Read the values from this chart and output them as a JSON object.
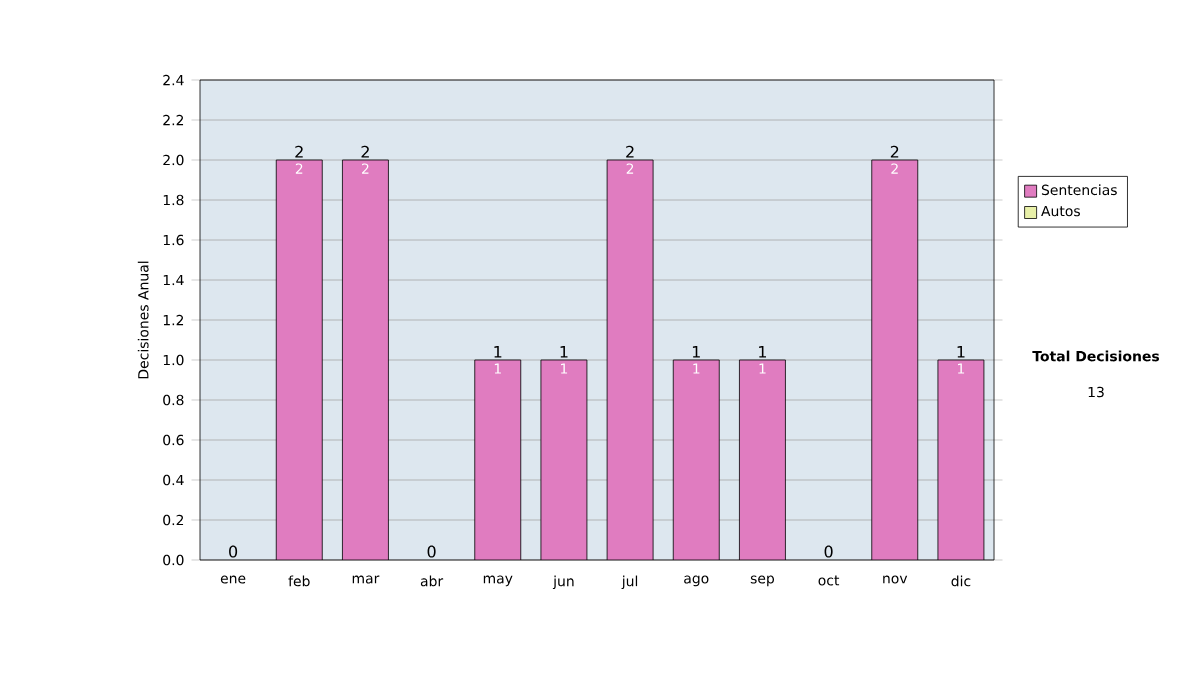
{
  "chart_data": {
    "type": "bar",
    "stacked": true,
    "ylabel": "Decisiones Anual",
    "categories": [
      "ene",
      "feb",
      "mar",
      "abr",
      "may",
      "jun",
      "jul",
      "ago",
      "sep",
      "oct",
      "nov",
      "dic"
    ],
    "series": [
      {
        "name": "Sentencias",
        "color": "#e07cc0",
        "values": [
          0,
          2,
          2,
          0,
          1,
          1,
          2,
          1,
          1,
          0,
          2,
          1
        ],
        "value_labels": [
          null,
          "2",
          "2",
          null,
          "1",
          "1",
          "2",
          "1",
          "1",
          null,
          "2",
          "1"
        ]
      },
      {
        "name": "Autos",
        "color": "#e8f0a8",
        "values": [
          0,
          0,
          0,
          0,
          0,
          0,
          0,
          0,
          0,
          0,
          0,
          0
        ]
      }
    ],
    "totals": [
      "0",
      "2",
      "2",
      "0",
      "1",
      "1",
      "2",
      "1",
      "1",
      "0",
      "2",
      "1"
    ],
    "ylim": [
      0,
      2.4
    ],
    "yticks": [
      {
        "value": 0,
        "label": "0.0"
      },
      {
        "value": 0.2,
        "label": "0.2"
      },
      {
        "value": 0.4,
        "label": "0.4"
      },
      {
        "value": 0.6,
        "label": "0.6"
      },
      {
        "value": 0.8,
        "label": "0.8"
      },
      {
        "value": 1,
        "label": "1.0"
      },
      {
        "value": 1.2,
        "label": "1.2"
      },
      {
        "value": 1.4,
        "label": "1.4"
      },
      {
        "value": 1.6,
        "label": "1.6"
      },
      {
        "value": 1.8,
        "label": "1.8"
      },
      {
        "value": 2,
        "label": "2.0"
      },
      {
        "value": 2.2,
        "label": "2.2"
      },
      {
        "value": 2.4,
        "label": "2.4"
      }
    ],
    "grid": "y",
    "legend": "right",
    "annotations": [
      "Total Decisiones",
      "13"
    ]
  }
}
